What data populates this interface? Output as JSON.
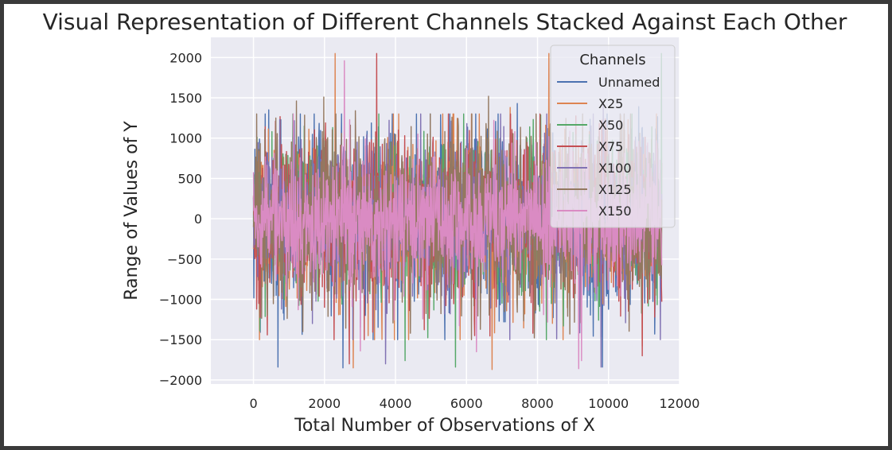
{
  "chart_data": {
    "type": "line",
    "title": "Visual Representation of Different Channels Stacked Against Each Other",
    "xlabel": "Total Number of Observations of X",
    "ylabel": "Range of Values of Y",
    "xlim": [
      -1200,
      12000
    ],
    "ylim": [
      -2050,
      2250
    ],
    "x_range": [
      0,
      11500
    ],
    "xticks": [
      0,
      2000,
      4000,
      6000,
      8000,
      10000,
      12000
    ],
    "yticks": [
      -2000,
      -1500,
      -1000,
      -500,
      0,
      500,
      1000,
      1500,
      2000
    ],
    "xtick_labels": [
      "0",
      "2000",
      "4000",
      "6000",
      "8000",
      "10000",
      "12000"
    ],
    "ytick_labels": [
      "−2000",
      "−1500",
      "−1000",
      "−500",
      "0",
      "500",
      "1000",
      "1500",
      "2000"
    ],
    "grid": true,
    "background": "#eaeaf2",
    "legend": {
      "title": "Channels",
      "position": "top-right"
    },
    "series": [
      {
        "name": "Unnamed",
        "color": "#4c72b0",
        "amp": 520,
        "peaks": [
          [
            430,
            1350
          ],
          [
            690,
            -1840
          ],
          [
            2520,
            -1850
          ],
          [
            5270,
            1290
          ],
          [
            7430,
            1430
          ],
          [
            9830,
            -1840
          ],
          [
            10850,
            1390
          ],
          [
            11300,
            -1430
          ]
        ]
      },
      {
        "name": "X25",
        "color": "#dd8452",
        "amp": 470,
        "peaks": [
          [
            2300,
            2050
          ],
          [
            2810,
            -1850
          ],
          [
            6720,
            -1870
          ],
          [
            8320,
            2050
          ],
          [
            7230,
            1380
          ],
          [
            3230,
            -1450
          ],
          [
            10430,
            1210
          ],
          [
            10950,
            -1580
          ]
        ]
      },
      {
        "name": "X50",
        "color": "#55a868",
        "amp": 420,
        "peaks": [
          [
            180,
            -1390
          ],
          [
            1430,
            1150
          ],
          [
            4270,
            -1760
          ],
          [
            5690,
            -1840
          ],
          [
            7780,
            1140
          ],
          [
            8730,
            -1330
          ],
          [
            11220,
            1140
          ],
          [
            11490,
            2050
          ]
        ]
      },
      {
        "name": "X75",
        "color": "#c44e52",
        "amp": 480,
        "peaks": [
          [
            3470,
            2050
          ],
          [
            620,
            1210
          ],
          [
            2700,
            -1800
          ],
          [
            4080,
            1100
          ],
          [
            6230,
            -1450
          ],
          [
            7870,
            -1420
          ],
          [
            10950,
            -1700
          ],
          [
            11300,
            -1220
          ]
        ]
      },
      {
        "name": "X100",
        "color": "#8172b3",
        "amp": 420,
        "peaks": [
          [
            9790,
            -1840
          ],
          [
            9850,
            1450
          ],
          [
            3720,
            -1800
          ],
          [
            1660,
            -1300
          ],
          [
            6010,
            1180
          ],
          [
            8540,
            -1490
          ],
          [
            5540,
            -1180
          ],
          [
            10480,
            -1290
          ]
        ]
      },
      {
        "name": "X125",
        "color": "#937860",
        "amp": 500,
        "peaks": [
          [
            1210,
            1460
          ],
          [
            1390,
            -1400
          ],
          [
            1980,
            1510
          ],
          [
            6620,
            1520
          ],
          [
            2870,
            1340
          ],
          [
            4420,
            -1420
          ],
          [
            8910,
            -1430
          ],
          [
            390,
            -1200
          ]
        ]
      },
      {
        "name": "X150",
        "color": "#da8bc3",
        "amp": 360,
        "peaks": [
          [
            2560,
            1960
          ],
          [
            3010,
            -1640
          ],
          [
            3150,
            990
          ],
          [
            6280,
            -1650
          ],
          [
            6770,
            1220
          ],
          [
            9160,
            -1860
          ],
          [
            9240,
            -1760
          ],
          [
            4630,
            1050
          ]
        ]
      }
    ]
  }
}
